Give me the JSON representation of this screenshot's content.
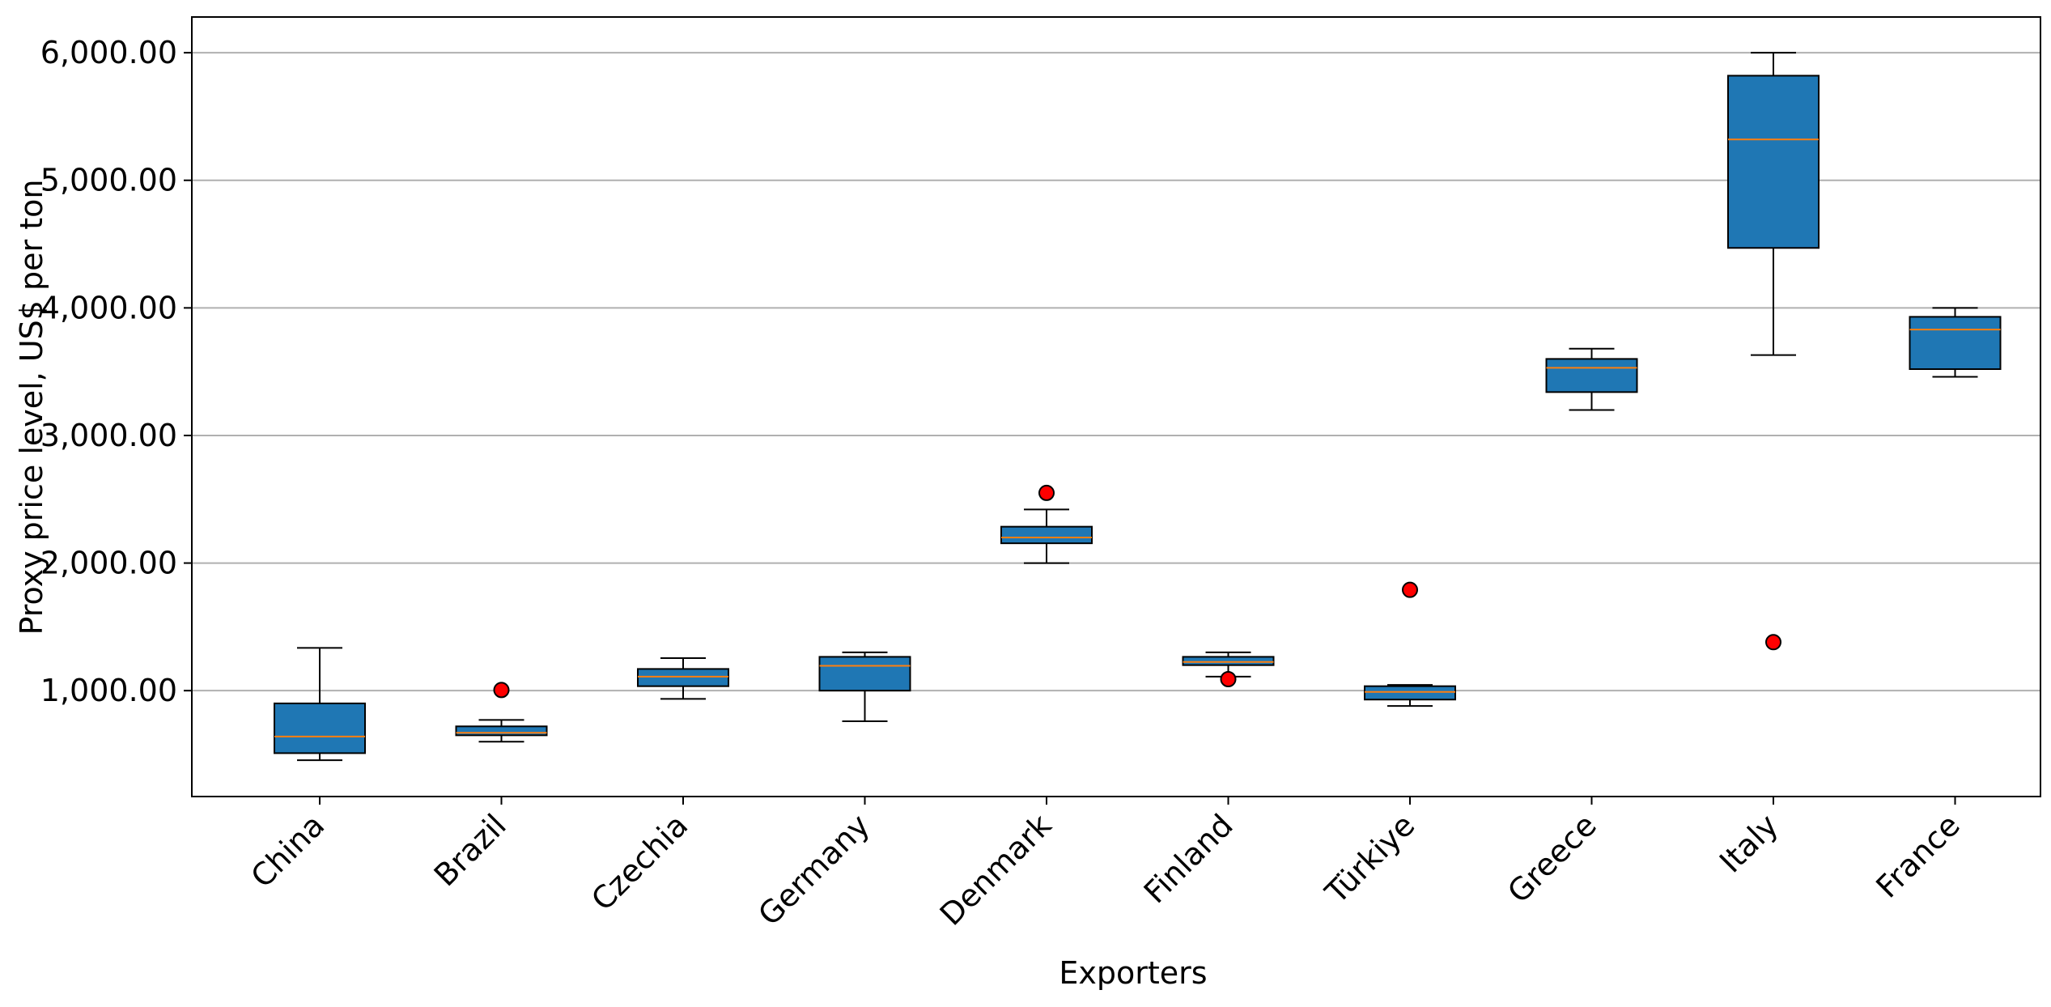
{
  "chart_data": {
    "type": "boxplot",
    "title": "",
    "xlabel": "Exporters",
    "ylabel": "Proxy price level, US$ per ton",
    "ylim": [
      170,
      6280
    ],
    "yticks": [
      1000,
      2000,
      3000,
      4000,
      5000,
      6000
    ],
    "ytick_labels": [
      "1,000.00",
      "2,000.00",
      "3,000.00",
      "4,000.00",
      "5,000.00",
      "6,000.00"
    ],
    "grid": "horizontal",
    "colors": {
      "box_fill": "#1f77b4",
      "median": "#ff7f0e",
      "outlier_fill": "#ff0000",
      "grid": "#b0b0b0",
      "edge": "#000000"
    },
    "categories": [
      "China",
      "Brazil",
      "Czechia",
      "Germany",
      "Denmark",
      "Finland",
      "Türkiye",
      "Greece",
      "Italy",
      "France"
    ],
    "boxes": [
      {
        "label": "China",
        "whisker_low": 455,
        "q1": 510,
        "median": 640,
        "q3": 900,
        "whisker_high": 1335,
        "outliers": []
      },
      {
        "label": "Brazil",
        "whisker_low": 600,
        "q1": 650,
        "median": 670,
        "q3": 720,
        "whisker_high": 770,
        "outliers": [
          1005
        ]
      },
      {
        "label": "Czechia",
        "whisker_low": 935,
        "q1": 1035,
        "median": 1110,
        "q3": 1170,
        "whisker_high": 1255,
        "outliers": []
      },
      {
        "label": "Germany",
        "whisker_low": 760,
        "q1": 1000,
        "median": 1195,
        "q3": 1265,
        "whisker_high": 1300,
        "outliers": []
      },
      {
        "label": "Denmark",
        "whisker_low": 2000,
        "q1": 2155,
        "median": 2200,
        "q3": 2285,
        "whisker_high": 2420,
        "outliers": [
          2550
        ]
      },
      {
        "label": "Finland",
        "whisker_low": 1110,
        "q1": 1200,
        "median": 1225,
        "q3": 1265,
        "whisker_high": 1300,
        "outliers": [
          1090
        ]
      },
      {
        "label": "Türkiye",
        "whisker_low": 880,
        "q1": 930,
        "median": 990,
        "q3": 1035,
        "whisker_high": 1045,
        "outliers": [
          1790
        ]
      },
      {
        "label": "Greece",
        "whisker_low": 3200,
        "q1": 3340,
        "median": 3530,
        "q3": 3600,
        "whisker_high": 3680,
        "outliers": []
      },
      {
        "label": "Italy",
        "whisker_low": 3630,
        "q1": 4470,
        "median": 5320,
        "q3": 5820,
        "whisker_high": 6000,
        "outliers": [
          1380
        ]
      },
      {
        "label": "France",
        "whisker_low": 3460,
        "q1": 3520,
        "median": 3830,
        "q3": 3930,
        "whisker_high": 4000,
        "outliers": []
      }
    ]
  }
}
